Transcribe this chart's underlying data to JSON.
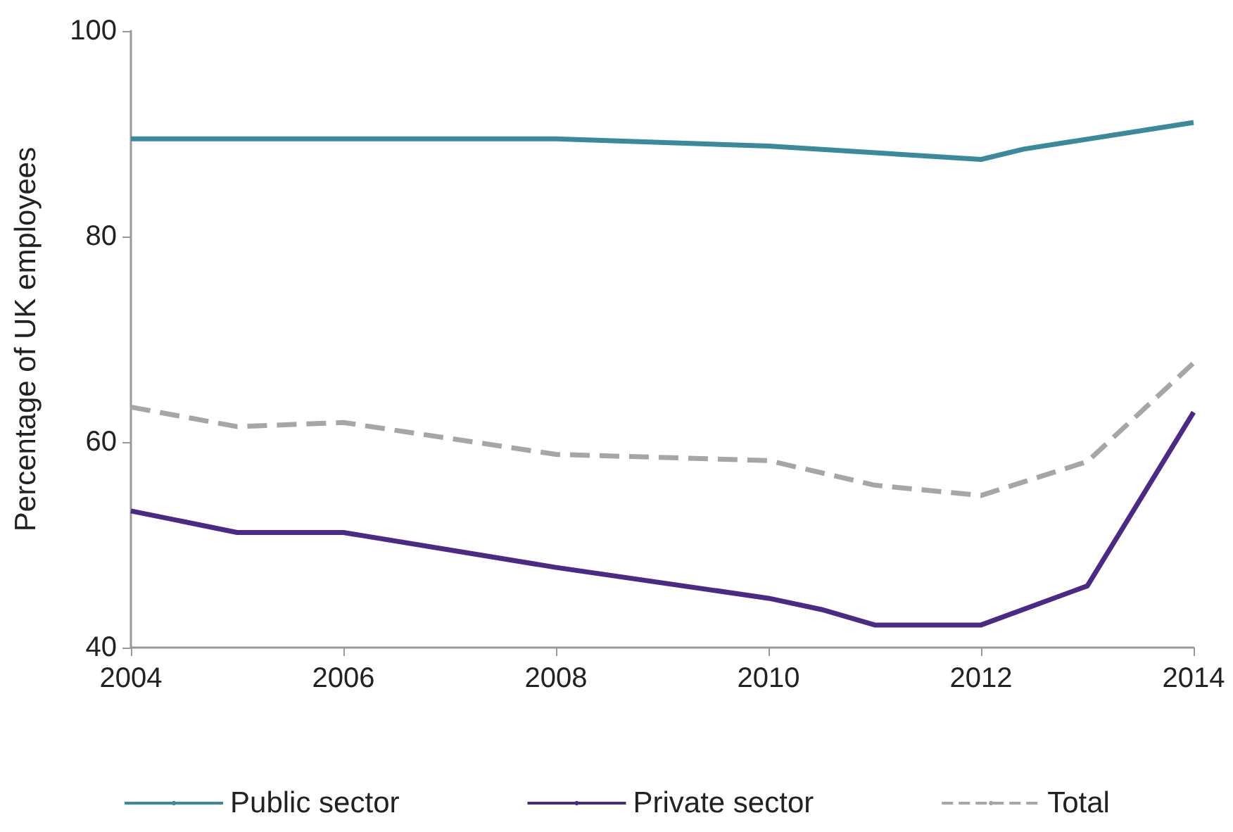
{
  "chart_data": {
    "type": "line",
    "ylabel": "Percentage of UK employees",
    "xlim": [
      2004,
      2014
    ],
    "xticks": [
      2004,
      2006,
      2008,
      2010,
      2012,
      2014
    ],
    "ylim": [
      40,
      100
    ],
    "yticks": [
      40,
      60,
      80,
      100
    ],
    "grid": false,
    "legend": "bottom",
    "marker": "none",
    "series": [
      {
        "name": "Public sector",
        "color": "#3a8a9c",
        "line_style": "solid",
        "x": [
          2004,
          2008,
          2010,
          2012,
          2012.4,
          2014
        ],
        "values": [
          89.5,
          89.5,
          88.8,
          87.5,
          88.5,
          91.1
        ]
      },
      {
        "name": "Private sector",
        "color": "#4b2a86",
        "line_style": "solid",
        "x": [
          2004,
          2005,
          2006,
          2008,
          2010,
          2010.5,
          2011,
          2012,
          2013,
          2014
        ],
        "values": [
          53.3,
          51.2,
          51.2,
          47.8,
          44.8,
          43.7,
          42.2,
          42.2,
          46.0,
          62.9
        ]
      },
      {
        "name": "Total",
        "color": "#a6a6a6",
        "line_style": "dashed",
        "x": [
          2004,
          2005,
          2006,
          2008,
          2010,
          2011,
          2012,
          2013,
          2014
        ],
        "values": [
          63.4,
          61.5,
          61.9,
          58.8,
          58.2,
          55.8,
          54.8,
          58.1,
          67.7
        ]
      }
    ]
  }
}
